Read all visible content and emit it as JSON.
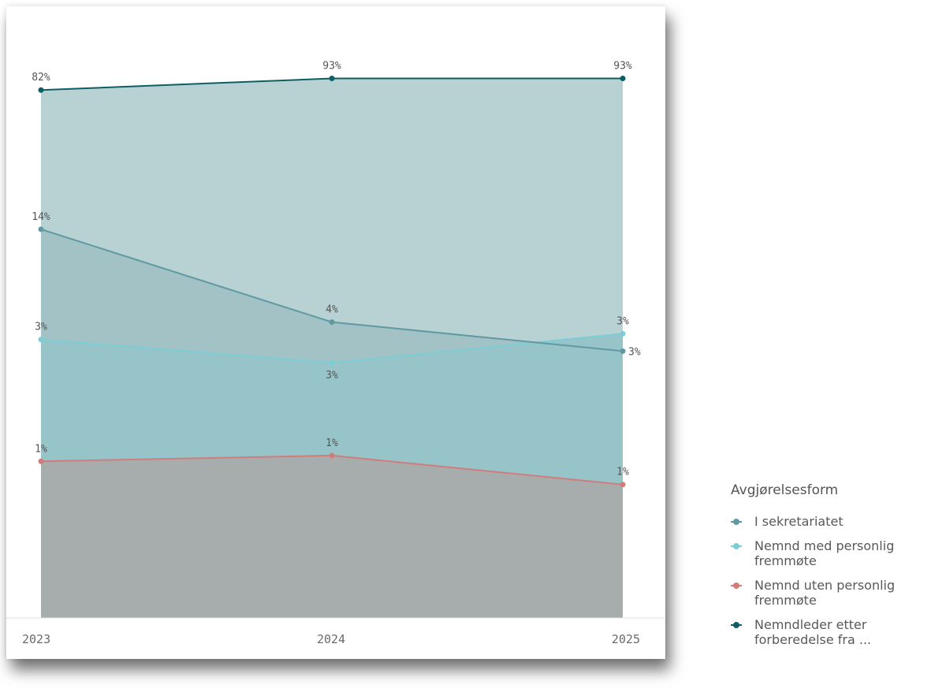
{
  "chart_data": {
    "type": "area",
    "x": [
      "2023",
      "2024",
      "2025"
    ],
    "ylim": [
      0,
      100
    ],
    "legend_position": "right-bottom",
    "legend_title": "Avgjørelsesform",
    "series": [
      {
        "name": "Nemnd uten personlig fremmøte",
        "color": "#d17c7c",
        "fill": "#a7acad",
        "values": [
          1,
          1,
          1
        ],
        "cumulative": [
          27,
          28,
          23
        ],
        "labels": [
          "1%",
          "1%",
          "1%"
        ]
      },
      {
        "name": "Nemnd med personlig fremmøte",
        "color": "#7ccdd5",
        "fill": "#97c4c8",
        "values": [
          3,
          3,
          3
        ],
        "cumulative": [
          48,
          44,
          49
        ],
        "labels": [
          "3%",
          "3%",
          "3%"
        ]
      },
      {
        "name": "I sekretariatet",
        "color": "#5f9aa2",
        "fill": "#a2c2c5",
        "values": [
          14,
          4,
          3
        ],
        "cumulative": [
          67,
          51,
          46
        ],
        "labels": [
          "14%",
          "4%",
          "3%"
        ]
      },
      {
        "name": "Nemndleder etter forberedelse fra ...",
        "color": "#0e5e66",
        "fill": "#b8d1d3",
        "values": [
          82,
          93,
          93
        ],
        "cumulative": [
          91,
          93,
          93
        ],
        "labels": [
          "82%",
          "93%",
          "93%"
        ]
      }
    ]
  },
  "legend": {
    "title": "Avgjørelsesform",
    "items": [
      {
        "lines": [
          "I sekretariatet"
        ],
        "color": "#5f9aa2"
      },
      {
        "lines": [
          "Nemnd med personlig",
          "fremmøte"
        ],
        "color": "#7ccdd5"
      },
      {
        "lines": [
          "Nemnd uten personlig",
          "fremmøte"
        ],
        "color": "#d17c7c"
      },
      {
        "lines": [
          "Nemndleder etter",
          "forberedelse fra ..."
        ],
        "color": "#0e5e66"
      }
    ]
  }
}
